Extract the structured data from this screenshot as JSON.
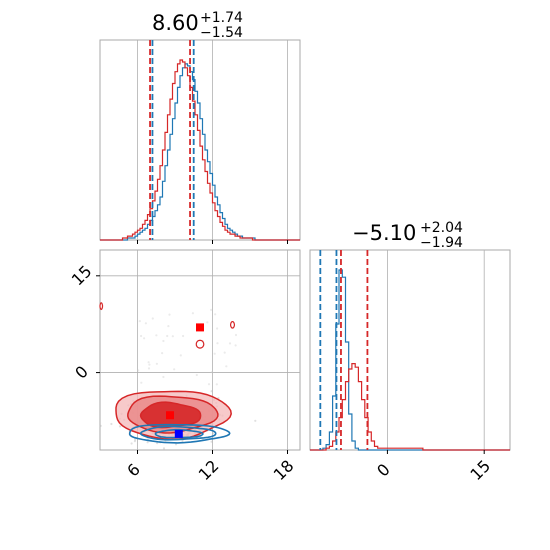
{
  "chart_data": {
    "type": "corner",
    "parameters": [
      {
        "title": {
          "median": "8.60",
          "plus": "+1.74",
          "minus": "−1.54"
        },
        "range": [
          3,
          19
        ],
        "ticks": [
          6,
          12,
          18
        ],
        "tick_labels": [
          "6",
          "12",
          "18"
        ]
      },
      {
        "title": {
          "median": "−5.10",
          "plus": "+2.04",
          "minus": "−1.94"
        },
        "range": [
          -12,
          19
        ],
        "ticks": [
          0,
          15
        ],
        "tick_labels": [
          "0",
          "15"
        ]
      }
    ],
    "series": [
      {
        "color": "#1f77b4",
        "hist1": {
          "start": 3.0,
          "step": 0.2,
          "counts": [
            0,
            0,
            0,
            0,
            0,
            0,
            0,
            0,
            0,
            0,
            0,
            1,
            1,
            1,
            2,
            3,
            4,
            5,
            6,
            8,
            10,
            12,
            15,
            18,
            22,
            30,
            38,
            46,
            54,
            62,
            70,
            78,
            84,
            88,
            90,
            89,
            86,
            82,
            76,
            70,
            62,
            54,
            46,
            40,
            34,
            28,
            22,
            18,
            14,
            11,
            8,
            6,
            5,
            4,
            3,
            2,
            2,
            1,
            1,
            1,
            1,
            1,
            0,
            0,
            0,
            0,
            0,
            0,
            0,
            0,
            0,
            0,
            0,
            0,
            0,
            0,
            0,
            0,
            0,
            0
          ]
        },
        "hist2": {
          "start": -12.0,
          "step": 0.5,
          "counts": [
            0,
            0,
            0,
            0,
            1,
            3,
            10,
            30,
            70,
            100,
            96,
            60,
            20,
            5,
            1,
            0,
            0,
            0,
            0,
            0,
            0,
            0,
            0,
            0,
            0,
            0,
            0,
            0,
            0,
            0,
            0,
            0,
            0,
            0,
            0,
            0,
            0,
            0,
            0,
            0,
            0,
            0,
            0,
            0,
            0,
            0,
            0,
            0,
            0,
            0,
            0,
            0,
            0,
            0,
            0,
            0,
            0,
            0,
            0,
            0,
            0,
            0
          ]
        },
        "quantiles1": [
          7.1,
          10.4
        ],
        "quantiles2": [
          -10.4,
          -7.9
        ],
        "truth": {
          "x": 9.3,
          "y": -9.5
        }
      },
      {
        "color": "#d62728",
        "hist1": {
          "start": 3.0,
          "step": 0.2,
          "counts": [
            0,
            0,
            0,
            0,
            0,
            0,
            0,
            0,
            0,
            1,
            1,
            2,
            2,
            3,
            4,
            5,
            6,
            8,
            10,
            13,
            16,
            20,
            25,
            31,
            38,
            46,
            55,
            64,
            72,
            80,
            86,
            90,
            92,
            91,
            88,
            84,
            78,
            71,
            64,
            56,
            48,
            41,
            35,
            29,
            24,
            19,
            15,
            12,
            9,
            7,
            5,
            4,
            3,
            3,
            2,
            2,
            1,
            1,
            1,
            1,
            1,
            0,
            0,
            0,
            0,
            0,
            0,
            0,
            0,
            0,
            0,
            0,
            0,
            0,
            0,
            0,
            0,
            0,
            0,
            0
          ]
        },
        "hist2": {
          "start": -12.0,
          "step": 0.5,
          "counts": [
            0,
            0,
            0,
            0,
            0,
            1,
            2,
            5,
            10,
            18,
            28,
            38,
            45,
            48,
            46,
            38,
            28,
            18,
            10,
            5,
            2,
            1,
            1,
            1,
            1,
            1,
            1,
            1,
            1,
            1,
            1,
            1,
            1,
            1,
            1,
            0,
            0,
            0,
            0,
            0,
            0,
            0,
            0,
            0,
            0,
            0,
            0,
            0,
            0,
            0,
            0,
            0,
            0,
            0,
            0,
            0,
            0,
            0,
            0,
            0,
            0,
            0
          ]
        },
        "quantiles1": [
          7.1,
          10.3
        ],
        "quantiles2": [
          -7.2,
          -3.1
        ],
        "truth": {
          "x": 8.6,
          "y": -6.6
        }
      }
    ],
    "extra_points": [
      {
        "x": 11.0,
        "y": 7.0,
        "color": "#ff0000",
        "shape": "square"
      }
    ],
    "grid": true
  }
}
